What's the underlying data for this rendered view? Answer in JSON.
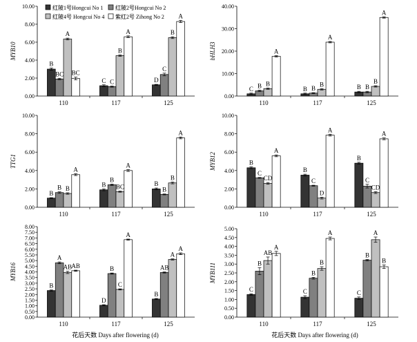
{
  "colors": {
    "series": [
      "#333333",
      "#808080",
      "#c0c0c0",
      "#ffffff"
    ],
    "stroke": "#000000"
  },
  "legend": [
    "红陂1号Hongcui No 1",
    "红陂2号Hongcui No 2",
    "红陂4号 Hongcui No 4",
    "紫红2号 Zihong No 2"
  ],
  "x_title": "花后天数 Days after flowering (d)",
  "chart_data": [
    {
      "type": "bar",
      "ylabel": "MYB10",
      "categories": [
        "110",
        "117",
        "125"
      ],
      "ylim": [
        0,
        10
      ],
      "yticks": [
        "0.00",
        "2.00",
        "4.00",
        "6.00",
        "8.00",
        "10.00"
      ],
      "series": [
        {
          "name": "红陂1号Hongcui No 1",
          "values": [
            3.0,
            1.15,
            1.25
          ],
          "errors": [
            0.12,
            0.1,
            0.05
          ],
          "labels": [
            "B",
            "C",
            "D"
          ]
        },
        {
          "name": "红陂2号Hongcui No 2",
          "values": [
            1.9,
            1.05,
            2.4
          ],
          "errors": [
            0.08,
            0.06,
            0.15
          ],
          "labels": [
            "BC",
            "C",
            "C"
          ]
        },
        {
          "name": "红陂4号 Hongcui No 4",
          "values": [
            6.35,
            4.5,
            6.5
          ],
          "errors": [
            0.1,
            0.08,
            0.1
          ],
          "labels": [
            "A",
            "B",
            "B"
          ]
        },
        {
          "name": "紫红2号 Zihong No 2",
          "values": [
            1.95,
            6.6,
            8.3
          ],
          "errors": [
            0.15,
            0.1,
            0.12
          ],
          "labels": [
            "BC",
            "A",
            "A"
          ]
        }
      ]
    },
    {
      "type": "bar",
      "ylabel": "bHLH3",
      "categories": [
        "110",
        "117",
        "125"
      ],
      "ylim": [
        0,
        40
      ],
      "yticks": [
        "0.00",
        "10.00",
        "20.00",
        "30.00",
        "40.00"
      ],
      "series": [
        {
          "name": "红陂1号Hongcui No 1",
          "values": [
            1.0,
            1.0,
            1.8
          ],
          "errors": [
            0.3,
            0.3,
            0.3
          ],
          "labels": [
            "C",
            "B",
            "B"
          ]
        },
        {
          "name": "红陂2号Hongcui No 2",
          "values": [
            2.3,
            1.3,
            1.8
          ],
          "errors": [
            0.3,
            0.2,
            0.3
          ],
          "labels": [
            "B",
            "B",
            "B"
          ]
        },
        {
          "name": "红陂4号 Hongcui No 4",
          "values": [
            3.3,
            3.0,
            4.3
          ],
          "errors": [
            0.3,
            0.3,
            0.3
          ],
          "labels": [
            "B",
            "B",
            "B"
          ]
        },
        {
          "name": "紫红2号 Zihong No 2",
          "values": [
            17.7,
            24.0,
            35.0
          ],
          "errors": [
            0.3,
            0.3,
            0.3
          ],
          "labels": [
            "A",
            "A",
            "A"
          ]
        }
      ]
    },
    {
      "type": "bar",
      "ylabel": "TTG1",
      "categories": [
        "110",
        "117",
        "125"
      ],
      "ylim": [
        0,
        10
      ],
      "yticks": [
        "0.00",
        "2.00",
        "4.00",
        "6.00",
        "8.00",
        "10.00"
      ],
      "series": [
        {
          "name": "红陂1号Hongcui No 1",
          "values": [
            1.0,
            1.9,
            2.0
          ],
          "errors": [
            0.05,
            0.1,
            0.1
          ],
          "labels": [
            "B",
            "B",
            "B"
          ]
        },
        {
          "name": "红陂2号Hongcui No 2",
          "values": [
            1.6,
            2.45,
            1.4
          ],
          "errors": [
            0.08,
            0.08,
            0.05
          ],
          "labels": [
            "B",
            "B",
            "B"
          ]
        },
        {
          "name": "红陂4号 Hongcui No 4",
          "values": [
            1.5,
            1.7,
            2.65
          ],
          "errors": [
            0.08,
            0.06,
            0.1
          ],
          "labels": [
            "B",
            "BC",
            "B"
          ]
        },
        {
          "name": "紫红2号 Zihong No 2",
          "values": [
            3.55,
            4.0,
            7.55
          ],
          "errors": [
            0.1,
            0.1,
            0.1
          ],
          "labels": [
            "A",
            "A",
            "A"
          ]
        }
      ]
    },
    {
      "type": "bar",
      "ylabel": "MYB12",
      "categories": [
        "110",
        "117",
        "125"
      ],
      "ylim": [
        0,
        10
      ],
      "yticks": [
        "0.00",
        "2.00",
        "4.00",
        "6.00",
        "8.00",
        "10.00"
      ],
      "series": [
        {
          "name": "红陂1号Hongcui No 1",
          "values": [
            4.3,
            3.5,
            4.8
          ],
          "errors": [
            0.1,
            0.1,
            0.1
          ],
          "labels": [
            "B",
            "B",
            "B"
          ]
        },
        {
          "name": "红陂2号Hongcui No 2",
          "values": [
            3.2,
            2.35,
            2.3
          ],
          "errors": [
            0.05,
            0.05,
            0.2
          ],
          "labels": [
            "C",
            "C",
            "C"
          ]
        },
        {
          "name": "红陂4号 Hongcui No 4",
          "values": [
            2.6,
            1.0,
            1.6
          ],
          "errors": [
            0.1,
            0.1,
            0.1
          ],
          "labels": [
            "CD",
            "D",
            "CD"
          ]
        },
        {
          "name": "紫红2号 Zihong No 2",
          "values": [
            5.6,
            7.85,
            7.45
          ],
          "errors": [
            0.1,
            0.1,
            0.1
          ],
          "labels": [
            "A",
            "A",
            "A"
          ]
        }
      ]
    },
    {
      "type": "bar",
      "ylabel": "MYB16",
      "categories": [
        "110",
        "117",
        "125"
      ],
      "ylim": [
        0,
        8
      ],
      "yticks": [
        "0.00",
        "0.50",
        "1.00",
        "1.50",
        "2.00",
        "2.50",
        "3.00",
        "3.50",
        "4.00",
        "4.50",
        "5.00",
        "5.50",
        "6.00",
        "6.50",
        "7.00",
        "7.50",
        "8.00"
      ],
      "series": [
        {
          "name": "红陂1号Hongcui No 1",
          "values": [
            2.35,
            1.05,
            1.6
          ],
          "errors": [
            0.05,
            0.05,
            0.05
          ],
          "labels": [
            "B",
            "D",
            "B"
          ]
        },
        {
          "name": "红陂2号Hongcui No 2",
          "values": [
            4.8,
            3.85,
            3.95
          ],
          "errors": [
            0.08,
            0.05,
            0.05
          ],
          "labels": [
            "A",
            "B",
            "AB"
          ]
        },
        {
          "name": "红陂4号 Hongcui No 4",
          "values": [
            3.95,
            2.45,
            5.1
          ],
          "errors": [
            0.1,
            0.05,
            0.05
          ],
          "labels": [
            "AB",
            "C",
            "A"
          ]
        },
        {
          "name": "紫红2号 Zihong No 2",
          "values": [
            4.1,
            6.85,
            5.6
          ],
          "errors": [
            0.05,
            0.05,
            0.08
          ],
          "labels": [
            "AB",
            "A",
            "A"
          ]
        }
      ]
    },
    {
      "type": "bar",
      "ylabel": "MYB111",
      "categories": [
        "110",
        "117",
        "125"
      ],
      "ylim": [
        0,
        5
      ],
      "yticks": [
        "0.00",
        "0.50",
        "1.00",
        "1.50",
        "2.00",
        "2.50",
        "3.00",
        "3.50",
        "4.00",
        "4.50",
        "5.00"
      ],
      "series": [
        {
          "name": "红陂1号Hongcui No 1",
          "values": [
            1.28,
            1.13,
            1.07
          ],
          "errors": [
            0.04,
            0.08,
            0.07
          ],
          "labels": [
            "C",
            "C",
            "C"
          ]
        },
        {
          "name": "红陂2号Hongcui No 2",
          "values": [
            2.6,
            2.2,
            3.22
          ],
          "errors": [
            0.2,
            0.05,
            0.04
          ],
          "labels": [
            "B",
            "B",
            "B"
          ]
        },
        {
          "name": "红陂4号 Hongcui No 4",
          "values": [
            3.2,
            2.75,
            4.38
          ],
          "errors": [
            0.2,
            0.1,
            0.15
          ],
          "labels": [
            "AB",
            "B",
            "A"
          ]
        },
        {
          "name": "紫红2号 Zihong No 2",
          "values": [
            3.6,
            4.45,
            2.85
          ],
          "errors": [
            0.12,
            0.08,
            0.1
          ],
          "labels": [
            "A",
            "A",
            "B"
          ]
        }
      ]
    }
  ]
}
